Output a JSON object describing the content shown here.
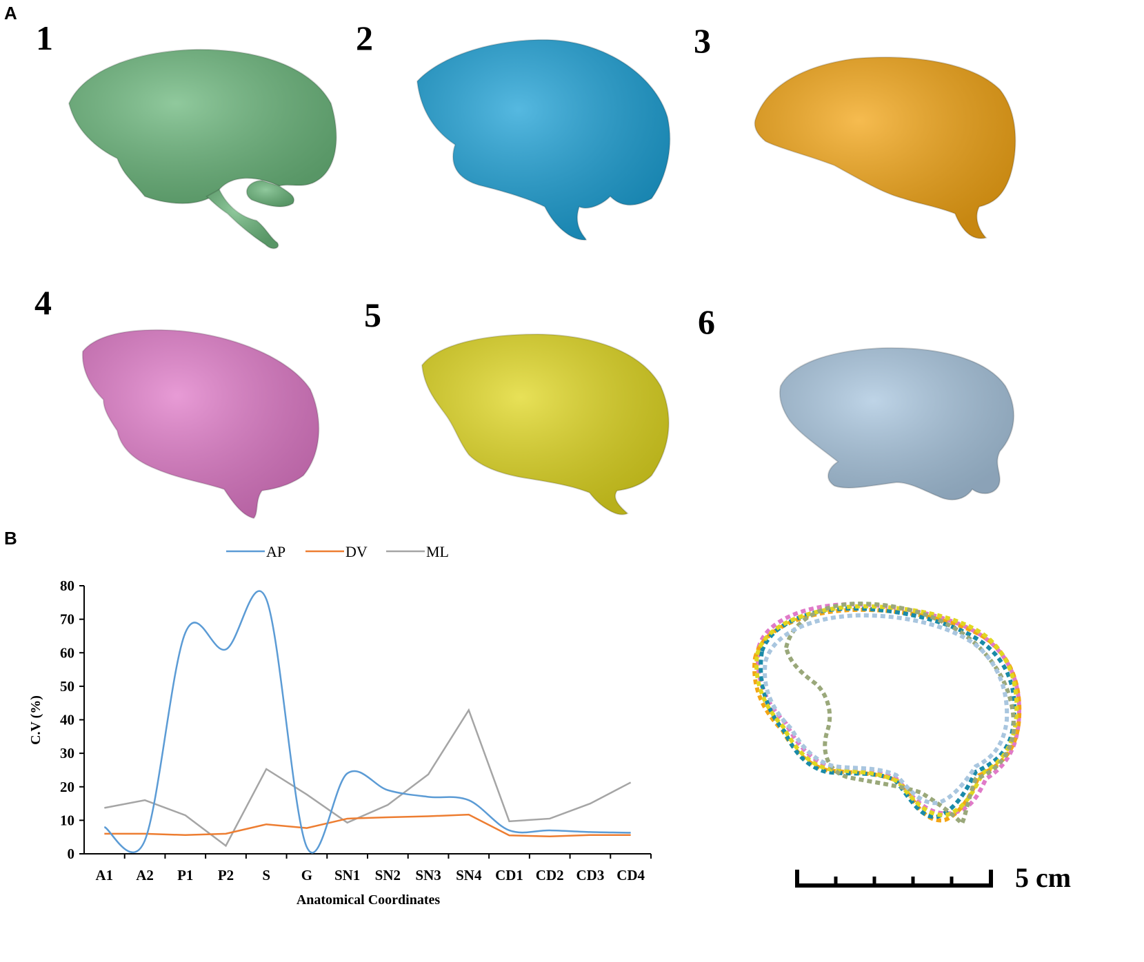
{
  "panels": {
    "a": "A",
    "b": "B"
  },
  "specimens": [
    {
      "number": "1",
      "color": "#6bb77c",
      "name": "green-brain-endocast"
    },
    {
      "number": "2",
      "color": "#1da1d6",
      "name": "blue-brain-endocast"
    },
    {
      "number": "3",
      "color": "#f3a515",
      "name": "orange-brain-endocast"
    },
    {
      "number": "4",
      "color": "#e07ac8",
      "name": "pink-brain-endocast"
    },
    {
      "number": "5",
      "color": "#e0d720",
      "name": "yellow-brain-endocast"
    },
    {
      "number": "6",
      "color": "#a9c6df",
      "name": "lightblue-brain-endocast"
    }
  ],
  "scale_bar": {
    "label": "5 cm"
  },
  "chart_data": {
    "type": "line",
    "ylabel": "C.V (%)",
    "xlabel": "Anatomical Coordinates",
    "ylim": [
      0,
      80
    ],
    "yticks": [
      "0",
      "10",
      "20",
      "30",
      "40",
      "50",
      "60",
      "70",
      "80"
    ],
    "categories": [
      "A1",
      "A2",
      "P1",
      "P2",
      "S",
      "G",
      "SN1",
      "SN2",
      "SN3",
      "SN4",
      "CD1",
      "CD2",
      "CD3",
      "CD4"
    ],
    "legend_position": "top",
    "series": [
      {
        "name": "AP",
        "color": "#5b9bd5",
        "smooth": true,
        "values": [
          8,
          4,
          66,
          61,
          76,
          2,
          24,
          19,
          17,
          16,
          7,
          7,
          6.5,
          6.3
        ]
      },
      {
        "name": "DV",
        "color": "#ed7d31",
        "smooth": false,
        "values": [
          6,
          6,
          5.6,
          6,
          8.8,
          7.7,
          10.5,
          10.9,
          11.2,
          11.7,
          5.5,
          5.2,
          5.6,
          5.6
        ]
      },
      {
        "name": "ML",
        "color": "#a5a5a5",
        "smooth": false,
        "values": [
          13.7,
          16,
          11.5,
          2.4,
          25.3,
          17.7,
          9.3,
          14.6,
          23.7,
          42.9,
          9.7,
          10.5,
          15,
          21.3
        ]
      }
    ]
  }
}
